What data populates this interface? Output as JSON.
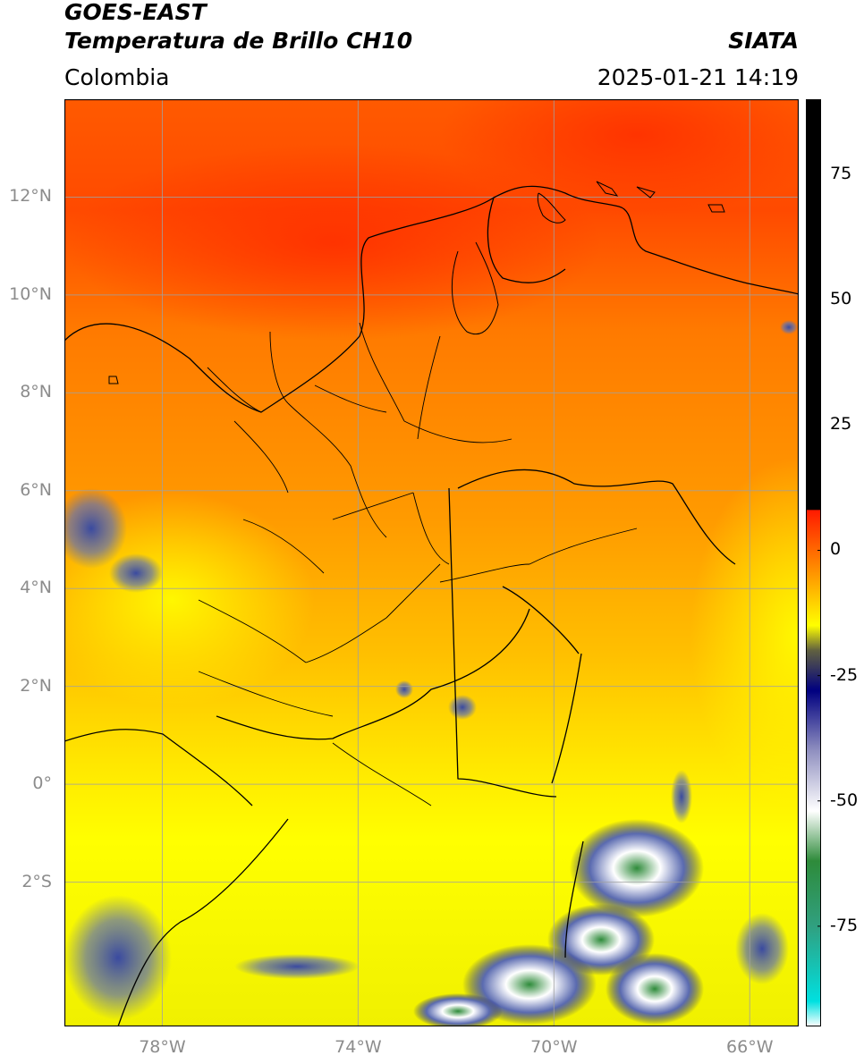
{
  "header": {
    "satellite": "GOES-EAST",
    "product": "Temperatura de Brillo CH10",
    "region": "Colombia",
    "agency": "SIATA",
    "datetime": "2025-01-21 14:19"
  },
  "map": {
    "extent": {
      "lon_min": -80.0,
      "lon_max": -65.0,
      "lat_min": -4.95,
      "lat_max": 14.0
    },
    "lat_labels": [
      {
        "lat": 12,
        "label": "12°N"
      },
      {
        "lat": 10,
        "label": "10°N"
      },
      {
        "lat": 8,
        "label": "8°N"
      },
      {
        "lat": 6,
        "label": "6°N"
      },
      {
        "lat": 4,
        "label": "4°N"
      },
      {
        "lat": 2,
        "label": "2°N"
      },
      {
        "lat": 0,
        "label": "0°"
      },
      {
        "lat": -2,
        "label": "2°S"
      }
    ],
    "lon_labels": [
      {
        "lon": -78,
        "label": "78°W"
      },
      {
        "lon": -74,
        "label": "74°W"
      },
      {
        "lon": -70,
        "label": "70°W"
      },
      {
        "lon": -66,
        "label": "66°W"
      }
    ],
    "grid": true,
    "colors": {
      "grid": "#a0a0a0",
      "border": "#000000"
    }
  },
  "colorbar": {
    "range": [
      -95,
      90
    ],
    "ticks": [
      {
        "value": 75,
        "label": "75"
      },
      {
        "value": 50,
        "label": "50"
      },
      {
        "value": 25,
        "label": "25"
      },
      {
        "value": 0,
        "label": "0"
      },
      {
        "value": -25,
        "label": "-25"
      },
      {
        "value": -50,
        "label": "-50"
      },
      {
        "value": -75,
        "label": "-75"
      }
    ],
    "stops": [
      {
        "value": -95,
        "color": "#ffffff"
      },
      {
        "value": -90,
        "color": "#00e0e0"
      },
      {
        "value": -75,
        "color": "#30a080"
      },
      {
        "value": -62,
        "color": "#2e8b3a"
      },
      {
        "value": -52,
        "color": "#ffffff"
      },
      {
        "value": -40,
        "color": "#9090c0"
      },
      {
        "value": -28,
        "color": "#000080"
      },
      {
        "value": -20,
        "color": "#606040"
      },
      {
        "value": -15,
        "color": "#ffff00"
      },
      {
        "value": -5,
        "color": "#ff9900"
      },
      {
        "value": 8,
        "color": "#ff1a00"
      },
      {
        "value": 8.1,
        "color": "#000000"
      },
      {
        "value": 90,
        "color": "#000000"
      }
    ]
  }
}
